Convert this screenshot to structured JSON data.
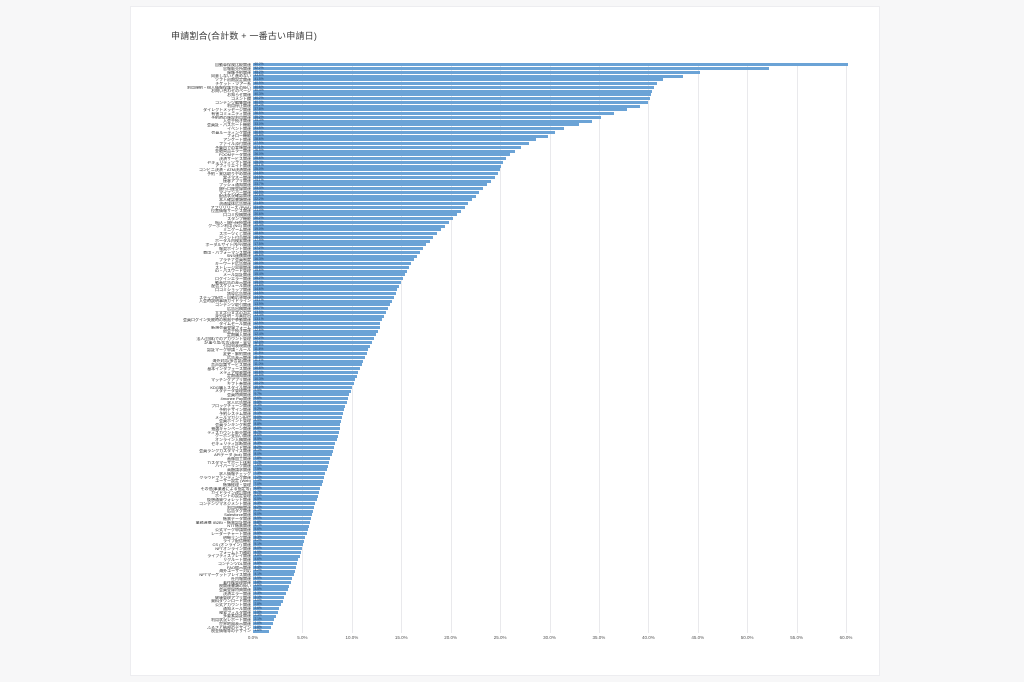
{
  "page": {
    "background_color": "#f7f7f8",
    "card_background_color": "#ffffff"
  },
  "chart_data": {
    "type": "bar",
    "orientation": "horizontal",
    "title": "申請割合(合計数 + 一番古い申請日)",
    "xlabel": "",
    "ylabel": "",
    "xlim": [
      0,
      60
    ],
    "grid": true,
    "bar_color": "#6ba3d6",
    "value_label_color": "#17365d",
    "x_ticks": [
      "0.0%",
      "5.0%",
      "10.0%",
      "15.0%",
      "20.0%",
      "25.0%",
      "30.0%",
      "35.0%",
      "40.0%",
      "45.0%",
      "50.0%",
      "55.0%",
      "60.0%"
    ],
    "categories": [
      "自動車保険比較関連",
      "官報販売所関連",
      "服飾予約関連",
      "同意しないと進めない",
      "ソフト初期設定関連",
      "チケット・ツアー系",
      "利用規約・個人情報保護方針の扱い",
      "お問い合わせのページ",
      "お知らせ関連",
      "コメント欄",
      "コンテンツ編集関連",
      "利用停止関連",
      "ダイレクトメッセージ関連",
      "有害コミュニティ関連",
      "予約時の施設利用関連",
      "入会手続き関連",
      "会員証・パスポート機能",
      "イベント関連",
      "会員ルーティング関連",
      "フォロー機能",
      "アンケート関連",
      "ファイル添付関連",
      "予算内での実施関連",
      "金融商品エラー関連",
      "FOOMデータ関連",
      "決済サービス関連",
      "セキュリティソフト関連",
      "アフィリエイト関連",
      "コンビニ決済・ATM決済関連",
      "予約・来店取りやめ関連",
      "電子マネー関連",
      "接客アプリ関連",
      "プッシュ通知関連",
      "銀行口座登録関連",
      "マイナンバー関連",
      "配送状況確認関連",
      "本人確認書類関連",
      "流通媒体広告関連",
      "アプリリリース (PWA)",
      "位置情報サービス関連",
      "口コミ投稿関連",
      "スタンプ機能",
      "振込・銀行接続関連",
      "クーポン利用 (NG) 関連",
      "ミニゲーム関連",
      "スポーツくじ関連",
      "ポイント付与関連",
      "ポータル内検索関連",
      "ポータルサイト内PR関連",
      "報奨ポイント関連",
      "費用・パフォーマンス関連",
      "SNS連携関連",
      "プラチナ会員制度",
      "キーワード広告関連",
      "ストレージ容量関連",
      "ID・パスワード管理",
      "メール認証関連",
      "ログインエラー関連",
      "動画広告の表示関連",
      "配信スケジュール関連",
      "口コミショップ関連",
      "誘導広告関連",
      "ステップ配信・自動応答関連",
      "入会時説明事項ガイドライン",
      "コンテンツ取引関連",
      "広告出稿関連",
      "大文字小文字の判定",
      "身分証明・写真提出",
      "会員ログイン失敗時の制限や挙動関連",
      "タイムセール関連",
      "新規会員登録フォーム",
      "退会手続き関連",
      "定期購入関連",
      "法人(団体)でのアカウント管理",
      "記事引用(広告)表現・発見",
      "引用句表現関連",
      "認証マーク申請・ルール",
      "変更・解約関連",
      "広告表示関連",
      "海外対応(多言語)関連",
      "音声認識サービス関連",
      "基本インタフェース関連",
      "メディア掲載関連",
      "定期通知関連",
      "マッチングアプリ関連",
      "ギフト券関連",
      "KDG購入スタイル関連",
      "メタデータ管理関連",
      "会員特典関連",
      "4monee Pay関連",
      "求人広告関連",
      "ブロックチェーン関連",
      "予約デザイン関連",
      "予約システム関連",
      "メールマガジン配信",
      "会員ポイント管理",
      "会員ランキング制度",
      "抽選キャンペーン関連",
      "ディスカウント販売関連",
      "クーポン支払い関連",
      "オンライン入稿関連",
      "セキュリティ診断関連",
      "広告ガイド関連",
      "会員ランクカスタマイズ関連",
      "APIデータ (bot) 関連",
      "画像加工関連",
      "カスタマーサポート体制",
      "ハイパーリンク関連",
      "高額請求関連",
      "求人情報チェック",
      "クラウドファンディング関連",
      "ユーザー設定 (Web)",
      "帳簿経理・管理",
      "その他(事業者による指定等)",
      "ガイドライン改訂関連",
      "ポイントの設定管理",
      "仮想通貨ウォレット関連",
      "コンテンツマネジメント関連",
      "利用明細関連",
      "広告タグ関連",
      "Salesforce関連",
      "帳票データ関連",
      "業務連携 (B2B)・帳票認証関連",
      "NTT帳票関連",
      "公式マーク申請関連",
      "レーダーチャート関連",
      "明細リンク関連",
      "ライブ配信機能",
      "CS (オンライン) 関連",
      "NFTオンライン関連",
      "フォーム入力補助",
      "ライブディスプレイ関連",
      "リクルート関連",
      "コンテンツDL関連",
      "FAQ掲示関連",
      "海外ユーザー対応",
      "NFTマーケットプレイス関連",
      "社内報関連",
      "著作権管理関連",
      "税関連書類の扱い",
      "会員登録特典関連",
      "決済エラー関連",
      "健康管理アプリ関連",
      "資料ダウンロード関連",
      "公式アカウント関連",
      "通知メール関連",
      "検索フィルタ関連",
      "多要素認証関連",
      "利用状況レポート関連",
      "世界地図表示関連",
      "ふるさと納税のデザイン",
      "税金情報等のデザイン"
    ],
    "values": [
      60.2,
      52.2,
      45.2,
      43.5,
      41.5,
      40.9,
      40.6,
      40.4,
      40.3,
      40.2,
      40.0,
      39.2,
      37.8,
      36.5,
      35.2,
      34.3,
      33.0,
      31.5,
      30.6,
      29.8,
      28.6,
      27.9,
      27.1,
      26.5,
      26.0,
      25.6,
      25.3,
      25.1,
      25.0,
      24.8,
      24.5,
      24.1,
      23.7,
      23.3,
      22.9,
      22.6,
      22.2,
      21.8,
      21.4,
      21.0,
      20.6,
      20.2,
      19.8,
      19.4,
      19.0,
      18.6,
      18.2,
      17.9,
      17.5,
      17.2,
      16.9,
      16.6,
      16.3,
      16.0,
      15.8,
      15.6,
      15.4,
      15.2,
      15.0,
      14.8,
      14.6,
      14.5,
      14.3,
      14.1,
      13.9,
      13.7,
      13.5,
      13.3,
      13.1,
      12.9,
      12.8,
      12.6,
      12.4,
      12.2,
      12.0,
      11.8,
      11.6,
      11.5,
      11.3,
      11.1,
      11.0,
      10.8,
      10.6,
      10.5,
      10.3,
      10.2,
      10.0,
      9.9,
      9.7,
      9.6,
      9.5,
      9.3,
      9.2,
      9.1,
      9.0,
      8.9,
      8.8,
      8.8,
      8.7,
      8.6,
      8.5,
      8.3,
      8.2,
      8.1,
      8.0,
      7.8,
      7.7,
      7.6,
      7.5,
      7.3,
      7.2,
      7.1,
      7.0,
      6.8,
      6.7,
      6.6,
      6.5,
      6.3,
      6.2,
      6.1,
      6.0,
      5.9,
      5.8,
      5.7,
      5.6,
      5.5,
      5.3,
      5.2,
      5.1,
      5.0,
      4.9,
      4.8,
      4.6,
      4.5,
      4.4,
      4.2,
      4.1,
      3.9,
      3.8,
      3.6,
      3.5,
      3.3,
      3.1,
      3.0,
      2.8,
      2.6,
      2.5,
      2.3,
      2.1,
      2.0,
      1.8,
      1.6
    ]
  }
}
